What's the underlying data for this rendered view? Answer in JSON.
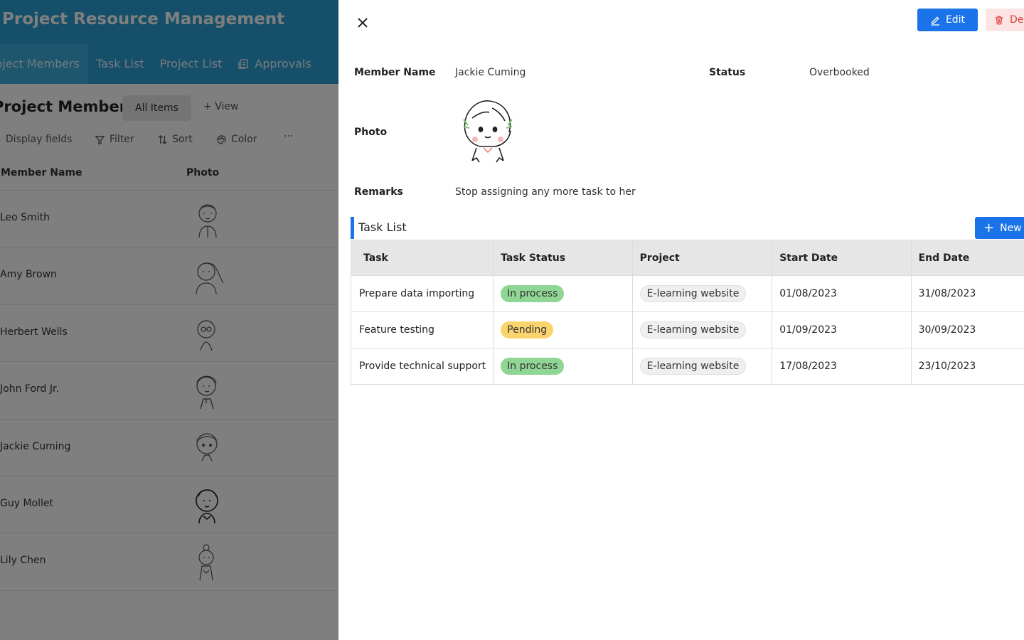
{
  "app": {
    "title": "Project Resource Management",
    "tabs": [
      {
        "label": "Project Members",
        "active": true
      },
      {
        "label": "Task List"
      },
      {
        "label": "Project List"
      },
      {
        "label": "Approvals",
        "icon": "form-icon"
      }
    ]
  },
  "view": {
    "title": "Project Members",
    "selected_view": "All Items",
    "add_view": "View"
  },
  "toolbar": {
    "display_fields": "Display fields",
    "filter": "Filter",
    "sort": "Sort",
    "color": "Color",
    "more": "···"
  },
  "grid": {
    "columns": [
      "Member Name",
      "Photo"
    ],
    "rows": [
      {
        "name": "Leo Smith"
      },
      {
        "name": "Amy Brown"
      },
      {
        "name": "Herbert Wells"
      },
      {
        "name": "John Ford Jr."
      },
      {
        "name": "Jackie Cuming"
      },
      {
        "name": "Guy Mollet"
      },
      {
        "name": "Lily Chen"
      }
    ]
  },
  "detail": {
    "edit_label": "Edit",
    "delete_label": "Delete",
    "fields": {
      "member_name_label": "Member Name",
      "member_name": "Jackie Cuming",
      "status_label": "Status",
      "status": "Overbooked",
      "photo_label": "Photo",
      "remarks_label": "Remarks",
      "remarks": "Stop assigning any more task to her"
    },
    "task_section": {
      "title": "Task List",
      "new_label": "New item",
      "columns": [
        "Task",
        "Task Status",
        "Project",
        "Start Date",
        "End Date"
      ],
      "rows": [
        {
          "task": "Prepare data importing",
          "status": "In process",
          "status_color": "#8fd694",
          "project": "E-learning website",
          "start": "01/08/2023",
          "end": "31/08/2023"
        },
        {
          "task": "Feature testing",
          "status": "Pending",
          "status_color": "#fbd46d",
          "project": "E-learning website",
          "start": "01/09/2023",
          "end": "30/09/2023"
        },
        {
          "task": "Provide technical support",
          "status": "In process",
          "status_color": "#8fd694",
          "project": "E-learning website",
          "start": "17/08/2023",
          "end": "23/10/2023"
        }
      ]
    }
  },
  "colors": {
    "header": "#2a9fd3",
    "primary": "#1a73e8",
    "danger": "#e23a3a"
  }
}
